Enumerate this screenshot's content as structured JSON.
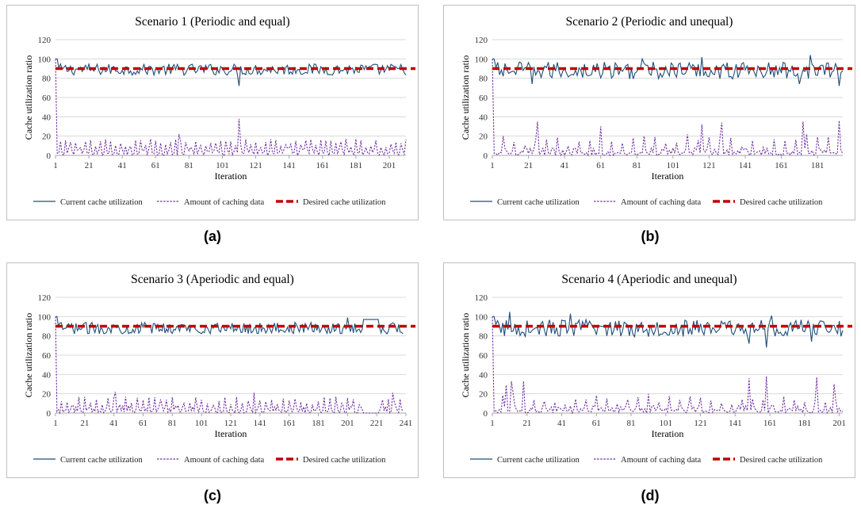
{
  "colors": {
    "current": "#1f4e79",
    "amount": "#7030a0",
    "desired": "#c00000"
  },
  "chart_data": [
    {
      "type": "line",
      "title": "Scenario 1 (Periodic and equal)",
      "caption": "(a)",
      "xlabel": "Iteration",
      "ylabel": "Cache utilization ratio",
      "ylim": [
        0,
        120
      ],
      "yticks": [
        "0",
        "20",
        "40",
        "60",
        "80",
        "100",
        "120"
      ],
      "xlim": [
        1,
        211
      ],
      "xticks": [
        1,
        21,
        41,
        61,
        81,
        101,
        121,
        141,
        161,
        181,
        201
      ],
      "grid": true,
      "legend_position": "bottom",
      "series": [
        {
          "name": "Current cache utilization",
          "style": "solid",
          "n": 211,
          "start": 100,
          "mean": 89,
          "amp": 6,
          "dips": [
            [
              111,
              72
            ]
          ]
        },
        {
          "name": "Amount of caching data",
          "style": "dashed",
          "n": 211,
          "start": 100,
          "mean": 8,
          "amp": 9,
          "period": 3,
          "peaks": [
            [
              111,
              38
            ],
            [
              75,
              22
            ]
          ]
        },
        {
          "name": "Desired cache utilization",
          "style": "thick-dash",
          "value": 90
        }
      ]
    },
    {
      "type": "line",
      "title": "Scenario 2 (Periodic and unequal)",
      "caption": "(b)",
      "xlabel": "Iteration",
      "ylabel": "Cache utilization ratio",
      "ylim": [
        0,
        120
      ],
      "yticks": [
        "0",
        "20",
        "40",
        "60",
        "80",
        "100",
        "120"
      ],
      "xlim": [
        1,
        195
      ],
      "xticks": [
        1,
        21,
        41,
        61,
        81,
        101,
        121,
        141,
        161,
        181
      ],
      "grid": true,
      "legend_position": "bottom",
      "series": [
        {
          "name": "Current cache utilization",
          "style": "solid",
          "n": 195,
          "start": 100,
          "mean": 88,
          "amp": 9,
          "dips": [
            [
              193,
              72
            ],
            [
              171,
              74
            ],
            [
              23,
              74
            ]
          ],
          "peaks": [
            [
              117,
              102
            ],
            [
              177,
              104
            ],
            [
              84,
              100
            ]
          ]
        },
        {
          "name": "Amount of caching data",
          "style": "dashed",
          "n": 195,
          "start": 100,
          "mean": 8,
          "amp": 14,
          "period": 6,
          "peaks": [
            [
              26,
              35
            ],
            [
              117,
              32
            ],
            [
              128,
              34
            ],
            [
              173,
              35
            ],
            [
              193,
              36
            ],
            [
              61,
              30
            ]
          ]
        },
        {
          "name": "Desired cache utilization",
          "style": "thick-dash",
          "value": 90
        }
      ]
    },
    {
      "type": "line",
      "title": "Scenario 3 (Aperiodic and equal)",
      "caption": "(c)",
      "xlabel": "Iteration",
      "ylabel": "Cache utilization ratio",
      "ylim": [
        0,
        120
      ],
      "yticks": [
        "0",
        "20",
        "40",
        "60",
        "80",
        "100",
        "120"
      ],
      "xlim": [
        1,
        241
      ],
      "xticks": [
        1,
        21,
        41,
        61,
        81,
        101,
        121,
        141,
        161,
        181,
        201,
        221,
        241
      ],
      "grid": true,
      "legend_position": "bottom",
      "series": [
        {
          "name": "Current cache utilization",
          "style": "solid",
          "n": 239,
          "start": 100,
          "mean": 88,
          "amp": 6,
          "flat": [
            [
              212,
              222,
              97
            ]
          ],
          "peaks": [
            [
              201,
              99
            ]
          ]
        },
        {
          "name": "Amount of caching data",
          "style": "dashed",
          "n": 239,
          "start": 100,
          "mean": 8,
          "amp": 9,
          "period": 4,
          "zero": [
            [
              212,
              222
            ]
          ],
          "peaks": [
            [
              42,
              22
            ],
            [
              137,
              21
            ],
            [
              232,
              21
            ]
          ]
        },
        {
          "name": "Desired cache utilization",
          "style": "thick-dash",
          "value": 90
        }
      ]
    },
    {
      "type": "line",
      "title": "Scenario 4 (Aperiodic and unequal)",
      "caption": "(d)",
      "xlabel": "Iteration",
      "ylabel": "Cache utilization ratio",
      "ylim": [
        0,
        120
      ],
      "yticks": [
        "0",
        "20",
        "40",
        "60",
        "80",
        "100",
        "120"
      ],
      "xlim": [
        1,
        203
      ],
      "xticks": [
        1,
        21,
        41,
        61,
        81,
        101,
        121,
        141,
        161,
        181,
        201
      ],
      "grid": true,
      "legend_position": "bottom",
      "series": [
        {
          "name": "Current cache utilization",
          "style": "solid",
          "n": 203,
          "start": 100,
          "mean": 88,
          "amp": 9,
          "dips": [
            [
              149,
              72
            ],
            [
              159,
              68
            ],
            [
              185,
              74
            ]
          ],
          "peaks": [
            [
              11,
              105
            ],
            [
              46,
              103
            ],
            [
              162,
              101
            ]
          ]
        },
        {
          "name": "Amount of caching data",
          "style": "dashed",
          "n": 203,
          "start": 100,
          "mean": 8,
          "amp": 14,
          "period": 6,
          "peaks": [
            [
              9,
              29
            ],
            [
              12,
              33
            ],
            [
              19,
              33
            ],
            [
              149,
              36
            ],
            [
              159,
              38
            ],
            [
              188,
              37
            ],
            [
              198,
              30
            ]
          ]
        },
        {
          "name": "Desired cache utilization",
          "style": "thick-dash",
          "value": 90
        }
      ]
    }
  ]
}
